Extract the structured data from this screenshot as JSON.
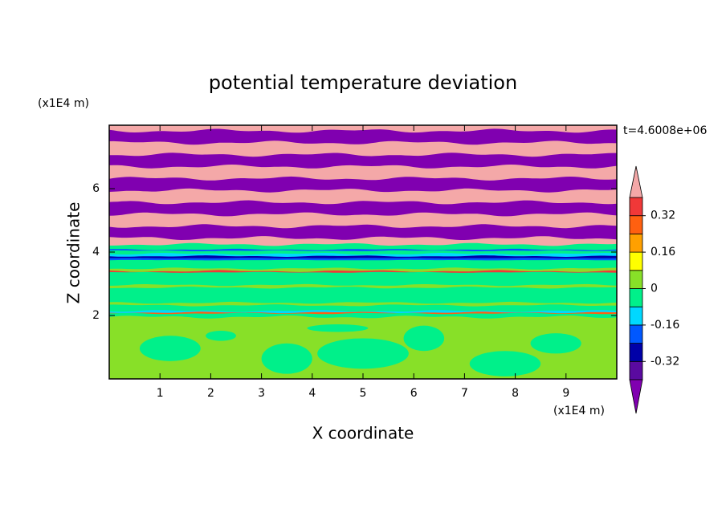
{
  "chart_data": {
    "type": "contour",
    "title": "potential temperature deviation",
    "x_label": "X coordinate",
    "y_label": "Z coordinate",
    "x_unit": "(x1E4 m)",
    "y_unit": "(x1E4 m)",
    "time_label": "t=4.6008e+06",
    "xlim": [
      0,
      10
    ],
    "ylim": [
      0,
      8
    ],
    "xticks": [
      1,
      2,
      3,
      4,
      5,
      6,
      7,
      8,
      9
    ],
    "yticks": [
      2,
      4,
      6
    ],
    "levels": [
      -0.4,
      -0.32,
      -0.24,
      -0.16,
      -0.08,
      0,
      0.08,
      0.16,
      0.24,
      0.32,
      0.4
    ],
    "colors": [
      "#5a0aa0",
      "#0000a8",
      "#0058ff",
      "#00d8ff",
      "#00f08a",
      "#88e028",
      "#ffff00",
      "#ffa000",
      "#ff6010",
      "#f03838"
    ],
    "below_color": "#8000b0",
    "above_color": "#f4a8a8",
    "colorbar_ticks": [
      0.32,
      0.16,
      0,
      -0.16,
      -0.32
    ]
  }
}
